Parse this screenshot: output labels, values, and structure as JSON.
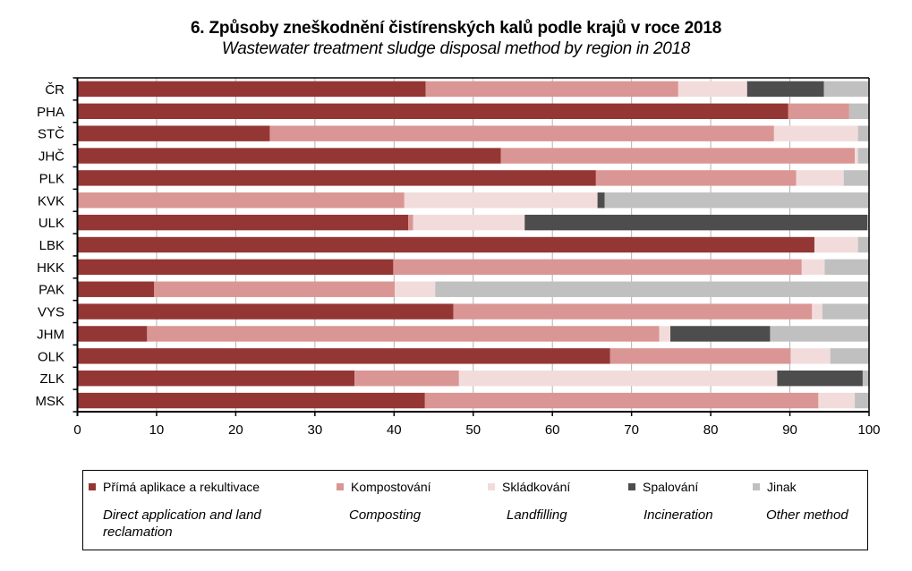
{
  "chart_data": {
    "type": "bar",
    "orientation": "horizontal",
    "stacked": true,
    "title": "6. Způsoby zneškodnění čistírenských kalů podle krajů v roce 2018",
    "subtitle": "Wastewater treatment sludge disposal method by region in 2018",
    "xlabel": "",
    "ylabel": "",
    "xlim": [
      0,
      100
    ],
    "xticks": [
      0,
      10,
      20,
      30,
      40,
      50,
      60,
      70,
      80,
      90,
      100
    ],
    "grid": "vertical",
    "legend_position": "bottom",
    "categories": [
      "ČR",
      "PHA",
      "STČ",
      "JHČ",
      "PLK",
      "KVK",
      "ULK",
      "LBK",
      "HKK",
      "PAK",
      "VYS",
      "JHM",
      "OLK",
      "ZLK",
      "MSK"
    ],
    "series": [
      {
        "name": "Přímá aplikace a rekultivace",
        "name_en": "Direct application and land reclamation",
        "color": "#943634",
        "values": [
          44.0,
          89.8,
          24.3,
          53.5,
          65.5,
          0.0,
          41.8,
          93.1,
          39.9,
          9.7,
          47.5,
          8.8,
          67.3,
          35.0,
          43.9
        ]
      },
      {
        "name": "Kompostování",
        "name_en": "Composting",
        "color": "#da9694",
        "values": [
          31.9,
          7.7,
          63.7,
          44.7,
          25.3,
          41.3,
          0.6,
          0.0,
          51.6,
          30.4,
          45.3,
          64.7,
          22.8,
          13.2,
          49.7
        ]
      },
      {
        "name": "Skládkování",
        "name_en": "Landfilling",
        "color": "#f2dcdb",
        "values": [
          8.7,
          0.0,
          10.6,
          0.4,
          6.0,
          24.4,
          14.1,
          5.5,
          2.9,
          5.1,
          1.3,
          1.4,
          5.0,
          40.2,
          4.6
        ]
      },
      {
        "name": "Spalování",
        "name_en": "Incineration",
        "color": "#4d4d4d",
        "values": [
          9.7,
          0.0,
          0.0,
          0.0,
          0.0,
          0.9,
          43.3,
          0.0,
          0.0,
          0.0,
          0.0,
          12.6,
          0.0,
          10.8,
          0.0
        ]
      },
      {
        "name": "Jinak",
        "name_en": "Other method",
        "color": "#c0c0c0",
        "values": [
          5.7,
          2.5,
          1.4,
          1.4,
          3.2,
          33.4,
          0.2,
          1.4,
          5.6,
          54.8,
          5.9,
          12.5,
          4.9,
          0.8,
          1.8
        ]
      }
    ]
  }
}
